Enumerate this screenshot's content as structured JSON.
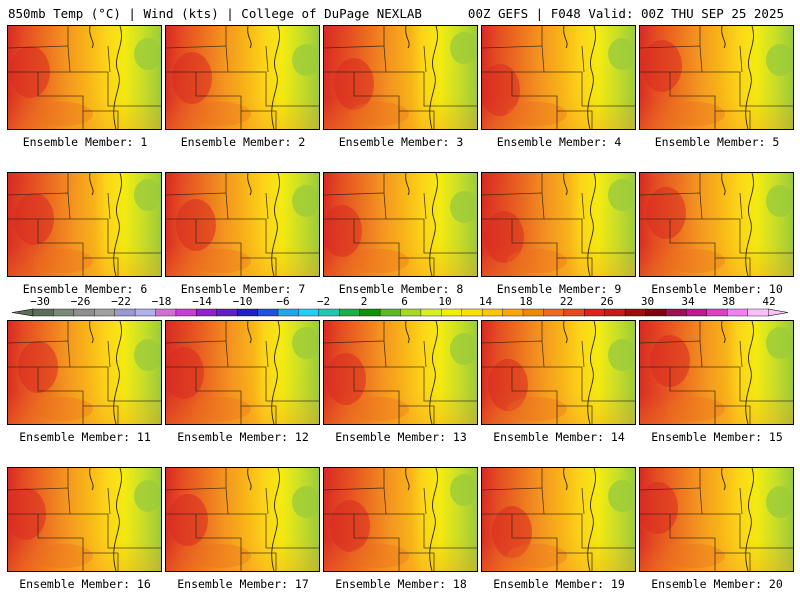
{
  "header": {
    "left_title": "850mb Temp (°C) | Wind (kts) | College of DuPage NEXLAB",
    "right_title": "00Z GEFS | F048 Valid: 00Z THU SEP 25 2025"
  },
  "member_label_prefix": "Ensemble Member: ",
  "members": [
    {
      "id": 1,
      "label": "Ensemble Member: 1"
    },
    {
      "id": 2,
      "label": "Ensemble Member: 2"
    },
    {
      "id": 3,
      "label": "Ensemble Member: 3"
    },
    {
      "id": 4,
      "label": "Ensemble Member: 4"
    },
    {
      "id": 5,
      "label": "Ensemble Member: 5"
    },
    {
      "id": 6,
      "label": "Ensemble Member: 6"
    },
    {
      "id": 7,
      "label": "Ensemble Member: 7"
    },
    {
      "id": 8,
      "label": "Ensemble Member: 8"
    },
    {
      "id": 9,
      "label": "Ensemble Member: 9"
    },
    {
      "id": 10,
      "label": "Ensemble Member: 10"
    },
    {
      "id": 11,
      "label": "Ensemble Member: 11"
    },
    {
      "id": 12,
      "label": "Ensemble Member: 12"
    },
    {
      "id": 13,
      "label": "Ensemble Member: 13"
    },
    {
      "id": 14,
      "label": "Ensemble Member: 14"
    },
    {
      "id": 15,
      "label": "Ensemble Member: 15"
    },
    {
      "id": 16,
      "label": "Ensemble Member: 16"
    },
    {
      "id": 17,
      "label": "Ensemble Member: 17"
    },
    {
      "id": 18,
      "label": "Ensemble Member: 18"
    },
    {
      "id": 19,
      "label": "Ensemble Member: 19"
    },
    {
      "id": 20,
      "label": "Ensemble Member: 20"
    }
  ],
  "colorbar": {
    "tick_labels": [
      "−30",
      "−26",
      "−22",
      "−18",
      "−14",
      "−10",
      "−6",
      "−2",
      "2",
      "6",
      "10",
      "14",
      "18",
      "22",
      "26",
      "30",
      "34",
      "38",
      "42"
    ],
    "colors": [
      "#5c6e5a",
      "#7a8a78",
      "#8e8e8e",
      "#a0a0a0",
      "#9a9ad0",
      "#b0b0ea",
      "#d070d0",
      "#c040d0",
      "#9020d0",
      "#6020c8",
      "#2020c8",
      "#2050e0",
      "#1ea8ea",
      "#20d0f0",
      "#20c8b0",
      "#18b048",
      "#109010",
      "#60b820",
      "#a8d820",
      "#d8f020",
      "#f0f000",
      "#f8e000",
      "#f8c800",
      "#f8a800",
      "#f08800",
      "#f06820",
      "#e84820",
      "#e02020",
      "#c81818",
      "#a00c0c",
      "#800010",
      "#a01050",
      "#c01890",
      "#e040c0",
      "#f080f0",
      "#f8c0f8"
    ]
  },
  "palette": {
    "green": "#9ccc3a",
    "lime": "#c8e028",
    "yellow": "#f4ec10",
    "yellow_orange": "#fcd418",
    "orange_light": "#f8b418",
    "orange": "#f49420",
    "orange_red": "#ec6e20",
    "red": "#e44a22",
    "deep_red": "#d82a22",
    "contour": "#302418"
  }
}
